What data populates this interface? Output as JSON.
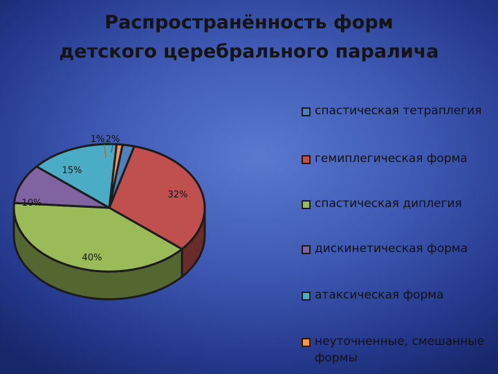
{
  "title": {
    "line1": "Распространённость форм",
    "line2": "детского церебрального паралича"
  },
  "chart_data": {
    "type": "pie",
    "title": "Распространённость форм детского церебрального паралича",
    "legend_position": "right",
    "slices": [
      {
        "label": "спастическая тетраплегия",
        "value": 2,
        "value_label": "2%",
        "color": "#4f81bd"
      },
      {
        "label": "гемиплегическая форма",
        "value": 32,
        "value_label": "32%",
        "color": "#c0504d"
      },
      {
        "label": "спастическая диплегия",
        "value": 40,
        "value_label": "40%",
        "color": "#9bbb59"
      },
      {
        "label": "дискинетическая форма",
        "value": 10,
        "value_label": "10%",
        "color": "#8064a2"
      },
      {
        "label": "атаксическая форма",
        "value": 15,
        "value_label": "15%",
        "color": "#4bacc6"
      },
      {
        "label": "неуточненные, смешанные формы",
        "value": 1,
        "value_label": "1%",
        "color": "#f79646"
      }
    ]
  }
}
